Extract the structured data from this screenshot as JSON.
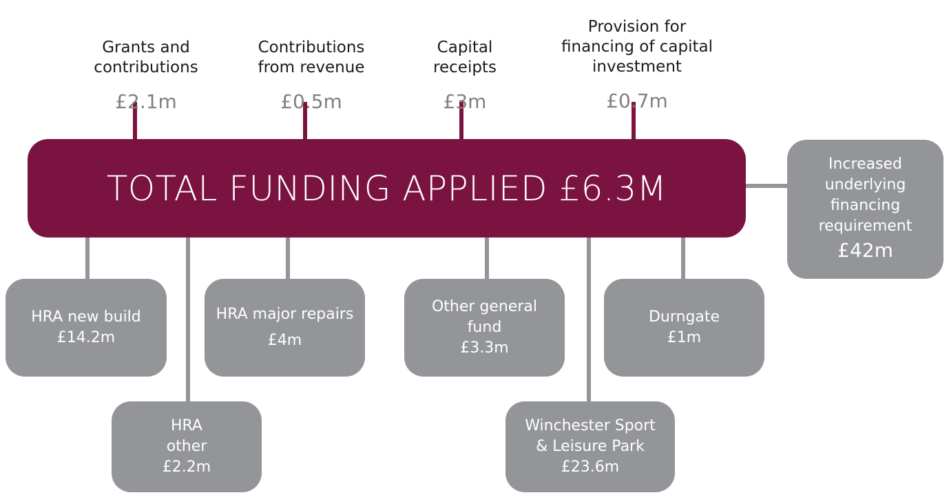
{
  "central": {
    "label": "TOTAL FUNDING APPLIED £6.3M"
  },
  "sources": [
    {
      "label": "Grants and\ncontributions",
      "amount": "£2.1m"
    },
    {
      "label": "Contributions\nfrom revenue",
      "amount": "£0.5m"
    },
    {
      "label": "Capital\nreceipts",
      "amount": "£3m"
    },
    {
      "label": "Provision for\nfinancing of capital\ninvestment",
      "amount": "£0.7m"
    }
  ],
  "uses": [
    {
      "label": "HRA new build",
      "amount": "£14.2m"
    },
    {
      "label": "HRA\nother",
      "amount": "£2.2m"
    },
    {
      "label": "HRA major repairs",
      "amount": "£4m"
    },
    {
      "label": "Other general\nfund",
      "amount": "£3.3m"
    },
    {
      "label": "Winchester Sport\n& Leisure Park",
      "amount": "£23.6m"
    },
    {
      "label": "Durngate",
      "amount": "£1m"
    },
    {
      "label": "Increased\nunderlying\nfinancing\nrequirement",
      "amount": "£42m"
    }
  ]
}
